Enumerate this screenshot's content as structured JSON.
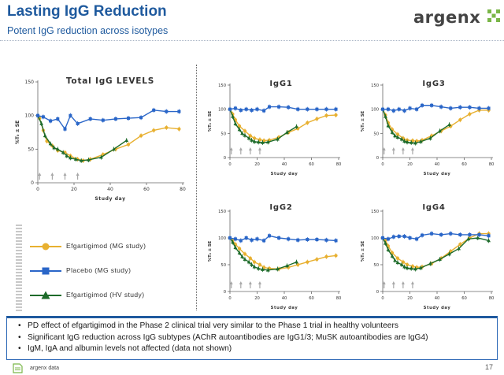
{
  "header": {
    "title": "Lasting IgG Reduction",
    "subtitle": "Potent IgG reduction across isotypes"
  },
  "logo": {
    "text": "argenx"
  },
  "legend": [
    {
      "label": "Efgartigimod (MG study)",
      "color": "#e8b030",
      "marker": "circle"
    },
    {
      "label": "Placebo (MG study)",
      "color": "#2a66c8",
      "marker": "square"
    },
    {
      "label": "Efgartigimod (HV study)",
      "color": "#1d6b2a",
      "marker": "triangle"
    }
  ],
  "bullets": [
    "PD effect of efgartigimod in the Phase 2 clinical trial very similar to the Phase 1 trial in healthy volunteers",
    "Significant IgG reduction across IgG subtypes (AChR autoantibodies are IgG1/3; MuSK autoantibodies are IgG4)",
    "IgM, IgA and albumin levels not affected (data not shown)"
  ],
  "footer": {
    "source": "argenx data",
    "page": "17"
  },
  "chart_data": [
    {
      "type": "line",
      "title": "Total IgG LEVELS",
      "xlabel": "Study day",
      "ylabel": "%T₀ ± SE",
      "xlim": [
        0,
        80
      ],
      "ylim": [
        0,
        150
      ],
      "xticks": [
        0,
        20,
        40,
        60,
        80
      ],
      "yticks": [
        0,
        50,
        100,
        150
      ],
      "dosing_days": [
        1,
        8,
        15,
        22
      ],
      "series": [
        {
          "name": "Placebo (MG study)",
          "color": "#2a66c8",
          "marker": "square",
          "x": [
            0,
            3,
            7,
            11,
            15,
            18,
            22,
            29,
            36,
            43,
            50,
            57,
            64,
            71,
            78
          ],
          "y": [
            100,
            98,
            92,
            95,
            80,
            100,
            88,
            95,
            93,
            95,
            96,
            97,
            108,
            106,
            106
          ]
        },
        {
          "name": "Efgartigimod (MG study)",
          "color": "#e8b030",
          "marker": "circle",
          "x": [
            0,
            1,
            3,
            5,
            8,
            11,
            15,
            18,
            22,
            25,
            29,
            36,
            43,
            50,
            57,
            64,
            71,
            78
          ],
          "y": [
            100,
            96,
            78,
            62,
            55,
            48,
            45,
            40,
            35,
            33,
            35,
            42,
            50,
            57,
            70,
            78,
            82,
            80
          ]
        },
        {
          "name": "Efgartigimod (HV study)",
          "color": "#1d6b2a",
          "marker": "triangle",
          "x": [
            0,
            2,
            4,
            7,
            9,
            11,
            14,
            16,
            18,
            21,
            24,
            28,
            35,
            42,
            49
          ],
          "y": [
            100,
            88,
            70,
            58,
            52,
            50,
            45,
            40,
            37,
            35,
            33,
            34,
            38,
            50,
            63
          ]
        }
      ]
    },
    {
      "type": "line",
      "title": "IgG1",
      "xlabel": "Study day",
      "ylabel": "%T₀ ± SE",
      "xlim": [
        0,
        80
      ],
      "ylim": [
        0,
        150
      ],
      "xticks": [
        0,
        20,
        40,
        60,
        80
      ],
      "yticks": [
        0,
        50,
        100,
        150
      ],
      "dosing_days": [
        1,
        8,
        15,
        22
      ],
      "series": [
        {
          "name": "Placebo (MG study)",
          "color": "#2a66c8",
          "marker": "square",
          "x": [
            0,
            4,
            8,
            12,
            16,
            20,
            25,
            29,
            36,
            43,
            50,
            57,
            64,
            71,
            78
          ],
          "y": [
            100,
            102,
            98,
            100,
            98,
            100,
            97,
            105,
            105,
            104,
            100,
            100,
            100,
            100,
            100
          ]
        },
        {
          "name": "Efgartigimod (MG study)",
          "color": "#e8b030",
          "marker": "circle",
          "x": [
            0,
            2,
            4,
            7,
            11,
            15,
            18,
            22,
            25,
            29,
            36,
            43,
            50,
            57,
            64,
            71,
            78
          ],
          "y": [
            100,
            90,
            78,
            65,
            55,
            45,
            40,
            37,
            35,
            36,
            42,
            52,
            60,
            72,
            80,
            87,
            88
          ]
        },
        {
          "name": "Efgartigimod (HV study)",
          "color": "#1d6b2a",
          "marker": "triangle",
          "x": [
            0,
            2,
            4,
            7,
            9,
            11,
            14,
            16,
            18,
            21,
            24,
            28,
            35,
            42,
            49
          ],
          "y": [
            100,
            85,
            70,
            58,
            50,
            46,
            40,
            36,
            33,
            32,
            31,
            32,
            38,
            52,
            64
          ]
        }
      ]
    },
    {
      "type": "line",
      "title": "IgG3",
      "xlabel": "Study day",
      "ylabel": "%T₀ ± SE",
      "xlim": [
        0,
        80
      ],
      "ylim": [
        0,
        150
      ],
      "xticks": [
        0,
        20,
        40,
        60,
        80
      ],
      "yticks": [
        0,
        50,
        100,
        150
      ],
      "dosing_days": [
        1,
        8,
        15,
        22
      ],
      "series": [
        {
          "name": "Placebo (MG study)",
          "color": "#2a66c8",
          "marker": "square",
          "x": [
            0,
            4,
            8,
            12,
            16,
            20,
            25,
            29,
            36,
            43,
            50,
            57,
            64,
            71,
            78
          ],
          "y": [
            100,
            100,
            97,
            100,
            97,
            102,
            100,
            108,
            108,
            105,
            102,
            104,
            104,
            102,
            102
          ]
        },
        {
          "name": "Efgartigimod (MG study)",
          "color": "#e8b030",
          "marker": "circle",
          "x": [
            0,
            2,
            4,
            7,
            11,
            15,
            18,
            22,
            25,
            29,
            36,
            43,
            50,
            57,
            64,
            71,
            78
          ],
          "y": [
            100,
            88,
            72,
            58,
            48,
            40,
            36,
            35,
            34,
            36,
            45,
            55,
            65,
            78,
            90,
            98,
            98
          ]
        },
        {
          "name": "Efgartigimod (HV study)",
          "color": "#1d6b2a",
          "marker": "triangle",
          "x": [
            0,
            2,
            4,
            7,
            9,
            11,
            14,
            16,
            18,
            21,
            24,
            28,
            35,
            42,
            49
          ],
          "y": [
            100,
            85,
            66,
            52,
            45,
            42,
            38,
            34,
            32,
            31,
            30,
            33,
            40,
            55,
            68
          ]
        }
      ]
    },
    {
      "type": "line",
      "title": "IgG2",
      "xlabel": "Study day",
      "ylabel": "%T₀ ± SE",
      "xlim": [
        0,
        80
      ],
      "ylim": [
        0,
        150
      ],
      "xticks": [
        0,
        20,
        40,
        60,
        80
      ],
      "yticks": [
        0,
        50,
        100,
        150
      ],
      "dosing_days": [
        1,
        8,
        15,
        22
      ],
      "series": [
        {
          "name": "Placebo (MG study)",
          "color": "#2a66c8",
          "marker": "square",
          "x": [
            0,
            4,
            8,
            12,
            16,
            20,
            25,
            29,
            36,
            43,
            50,
            57,
            64,
            71,
            78
          ],
          "y": [
            100,
            98,
            95,
            100,
            96,
            98,
            95,
            104,
            100,
            98,
            96,
            97,
            97,
            96,
            95
          ]
        },
        {
          "name": "Efgartigimod (MG study)",
          "color": "#e8b030",
          "marker": "circle",
          "x": [
            0,
            2,
            4,
            7,
            11,
            15,
            18,
            22,
            25,
            29,
            36,
            43,
            50,
            57,
            64,
            71,
            78
          ],
          "y": [
            100,
            95,
            88,
            80,
            70,
            62,
            55,
            50,
            45,
            43,
            42,
            45,
            50,
            55,
            60,
            65,
            67
          ]
        },
        {
          "name": "Efgartigimod (HV study)",
          "color": "#1d6b2a",
          "marker": "triangle",
          "x": [
            0,
            2,
            4,
            7,
            9,
            11,
            14,
            16,
            18,
            21,
            24,
            28,
            35,
            42,
            49
          ],
          "y": [
            100,
            92,
            82,
            72,
            65,
            60,
            55,
            50,
            46,
            43,
            41,
            40,
            42,
            48,
            55
          ]
        }
      ]
    },
    {
      "type": "line",
      "title": "IgG4",
      "xlabel": "Study day",
      "ylabel": "%T₀ ± SE",
      "xlim": [
        0,
        80
      ],
      "ylim": [
        0,
        150
      ],
      "xticks": [
        0,
        20,
        40,
        60,
        80
      ],
      "yticks": [
        0,
        50,
        100,
        150
      ],
      "dosing_days": [
        1,
        8,
        15,
        22
      ],
      "series": [
        {
          "name": "Placebo (MG study)",
          "color": "#2a66c8",
          "marker": "square",
          "x": [
            0,
            4,
            8,
            12,
            16,
            20,
            25,
            29,
            36,
            43,
            50,
            57,
            64,
            71,
            78
          ],
          "y": [
            100,
            98,
            102,
            103,
            103,
            100,
            98,
            105,
            108,
            106,
            108,
            106,
            106,
            106,
            104
          ]
        },
        {
          "name": "Efgartigimod (MG study)",
          "color": "#e8b030",
          "marker": "circle",
          "x": [
            0,
            2,
            4,
            7,
            11,
            15,
            18,
            22,
            25,
            29,
            36,
            43,
            50,
            57,
            64,
            71,
            78
          ],
          "y": [
            100,
            95,
            85,
            72,
            62,
            55,
            50,
            47,
            45,
            46,
            52,
            62,
            75,
            88,
            100,
            108,
            108
          ]
        },
        {
          "name": "Efgartigimod (HV study)",
          "color": "#1d6b2a",
          "marker": "triangle",
          "x": [
            0,
            2,
            4,
            7,
            9,
            11,
            14,
            16,
            18,
            21,
            24,
            28,
            35,
            42,
            49,
            56,
            63,
            70,
            78
          ],
          "y": [
            100,
            90,
            78,
            66,
            58,
            54,
            50,
            46,
            44,
            43,
            42,
            44,
            52,
            60,
            70,
            80,
            98,
            100,
            95
          ]
        }
      ]
    }
  ]
}
